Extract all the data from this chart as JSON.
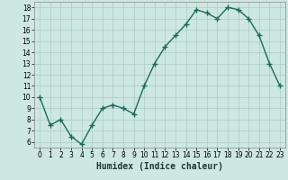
{
  "x": [
    0,
    1,
    2,
    3,
    4,
    5,
    6,
    7,
    8,
    9,
    10,
    11,
    12,
    13,
    14,
    15,
    16,
    17,
    18,
    19,
    20,
    21,
    22,
    23
  ],
  "y": [
    10,
    7.5,
    8,
    6.5,
    5.8,
    7.5,
    9,
    9.3,
    9,
    8.5,
    11,
    13,
    14.5,
    15.5,
    16.5,
    17.8,
    17.5,
    17,
    18,
    17.8,
    17,
    15.5,
    13,
    11
  ],
  "line_color": "#1a6b5a",
  "marker": "+",
  "marker_size": 4,
  "marker_lw": 1.0,
  "line_width": 1.0,
  "bg_color": "#cce8e0",
  "grid_color": "#aaccc4",
  "xlabel": "Humidex (Indice chaleur)",
  "xlim": [
    -0.5,
    23.5
  ],
  "ylim": [
    5.5,
    18.5
  ],
  "yticks": [
    6,
    7,
    8,
    9,
    10,
    11,
    12,
    13,
    14,
    15,
    16,
    17,
    18
  ],
  "xticks": [
    0,
    1,
    2,
    3,
    4,
    5,
    6,
    7,
    8,
    9,
    10,
    11,
    12,
    13,
    14,
    15,
    16,
    17,
    18,
    19,
    20,
    21,
    22,
    23
  ],
  "tick_fontsize": 5.5,
  "xlabel_fontsize": 7.0,
  "spine_color": "#888888"
}
